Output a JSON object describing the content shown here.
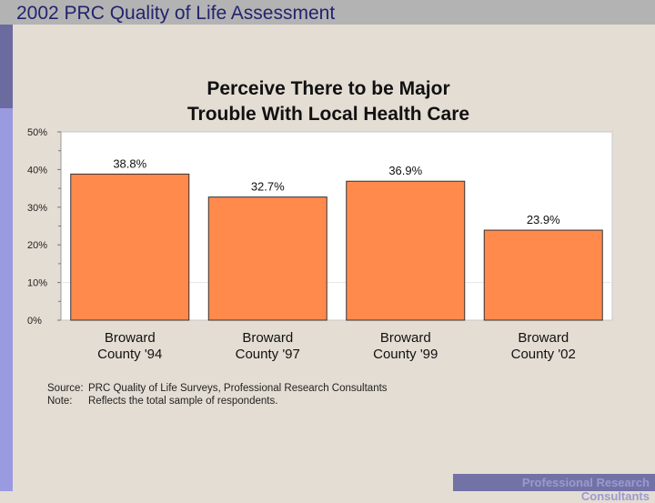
{
  "slide": {
    "title": "2002 PRC Quality of Life Assessment",
    "footer_line1": "Professional Research",
    "footer_line2": "Consultants"
  },
  "chart_data": {
    "type": "bar",
    "title": "Perceive There to be Major Trouble With Local Health Care",
    "title_lines": [
      "Perceive There to be Major",
      "Trouble With Local Health Care"
    ],
    "categories": [
      [
        "Broward",
        "County '94"
      ],
      [
        "Broward",
        "County '97"
      ],
      [
        "Broward",
        "County '99"
      ],
      [
        "Broward",
        "County '02"
      ]
    ],
    "values": [
      38.8,
      32.7,
      36.9,
      23.9
    ],
    "value_labels": [
      "38.8%",
      "32.7%",
      "36.9%",
      "23.9%"
    ],
    "yticks": [
      0,
      10,
      20,
      30,
      40,
      50
    ],
    "ytick_labels": [
      "0%",
      "10%",
      "20%",
      "30%",
      "40%",
      "50%"
    ],
    "ylim": [
      0,
      50
    ],
    "xlabel": "",
    "ylabel": "",
    "grid": false,
    "bar_color": "#ff8a4c"
  },
  "notes": {
    "source_label": "Source:",
    "source_text": "PRC Quality of Life Surveys, Professional Research Consultants",
    "note_label": "Note:",
    "note_text": "Reflects the total sample of respondents."
  }
}
